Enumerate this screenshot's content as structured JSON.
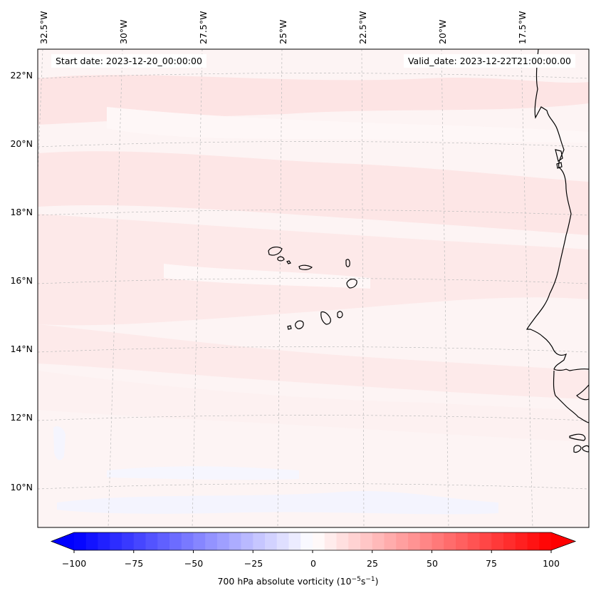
{
  "map": {
    "start_date": "Start date: 2023-12-20_00:00:00",
    "valid_date": "Valid_date: 2023-12-22T21:00:00.00",
    "longitude_labels": [
      "32.5°W",
      "30°W",
      "27.5°W",
      "25°W",
      "22.5°W",
      "20°W",
      "17.5°W"
    ],
    "latitude_labels": [
      "22°N",
      "20°N",
      "18°N",
      "16°N",
      "14°N",
      "12°N",
      "10°N"
    ],
    "field_colors": {
      "light_pink": "#fde6e6",
      "near_white": "#fdf5f5",
      "faint_blue": "#f4f4fe"
    }
  },
  "colorbar": {
    "ticks": [
      "−100",
      "−75",
      "−50",
      "−25",
      "0",
      "25",
      "50",
      "75",
      "100"
    ],
    "title_prefix": "700 hPa absolute vorticity (10",
    "title_exp1": "−5",
    "title_mid": "s",
    "title_exp2": "−1",
    "title_suffix": ")",
    "min_color": "#0000ff",
    "mid_color": "#ffffff",
    "max_color": "#ff0000"
  }
}
